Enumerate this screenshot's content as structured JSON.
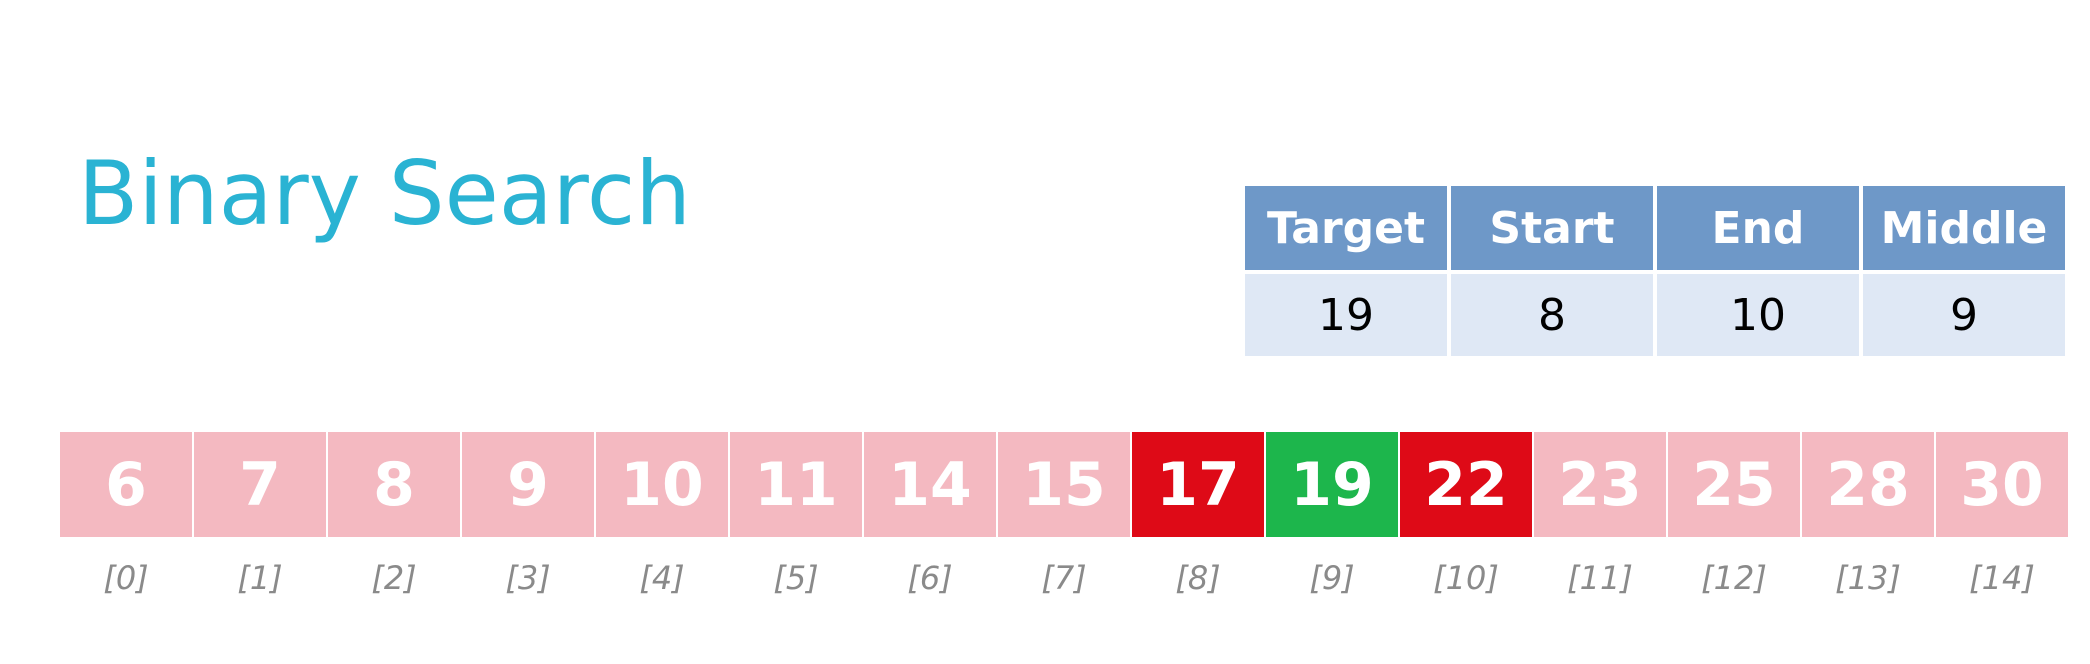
{
  "title": "Binary Search",
  "variables": {
    "headers": [
      "Target",
      "Start",
      "End",
      "Middle"
    ],
    "values": [
      "19",
      "8",
      "10",
      "9"
    ]
  },
  "array": [
    {
      "value": "6",
      "index": "[0]",
      "state": "inactive"
    },
    {
      "value": "7",
      "index": "[1]",
      "state": "inactive"
    },
    {
      "value": "8",
      "index": "[2]",
      "state": "inactive"
    },
    {
      "value": "9",
      "index": "[3]",
      "state": "inactive"
    },
    {
      "value": "10",
      "index": "[4]",
      "state": "inactive"
    },
    {
      "value": "11",
      "index": "[5]",
      "state": "inactive"
    },
    {
      "value": "14",
      "index": "[6]",
      "state": "inactive"
    },
    {
      "value": "15",
      "index": "[7]",
      "state": "inactive"
    },
    {
      "value": "17",
      "index": "[8]",
      "state": "boundary"
    },
    {
      "value": "19",
      "index": "[9]",
      "state": "found"
    },
    {
      "value": "22",
      "index": "[10]",
      "state": "boundary"
    },
    {
      "value": "23",
      "index": "[11]",
      "state": "inactive"
    },
    {
      "value": "25",
      "index": "[12]",
      "state": "inactive"
    },
    {
      "value": "28",
      "index": "[13]",
      "state": "inactive"
    },
    {
      "value": "30",
      "index": "[14]",
      "state": "inactive"
    }
  ],
  "colors": {
    "inactive": "#f4b9c1",
    "boundary": "#de0a17",
    "found": "#1db64c"
  }
}
